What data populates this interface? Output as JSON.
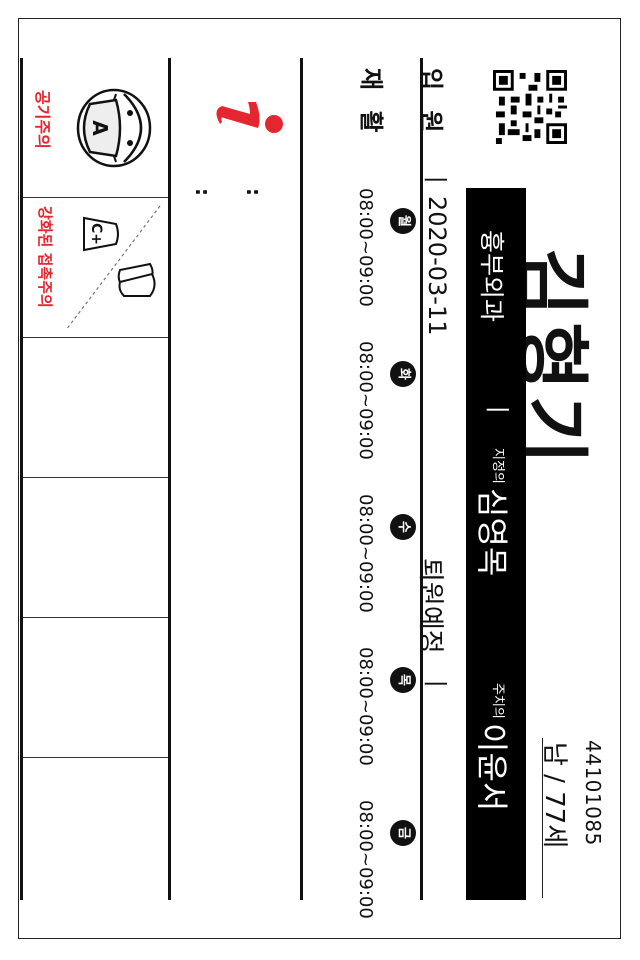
{
  "patient": {
    "id": "44101085",
    "sex_age": "남 / 77세",
    "name": "김형기",
    "department": "흉부외과",
    "separator": "|",
    "designated_label": "지정의",
    "designated_doctor": "심영목",
    "attending_label": "주치의",
    "attending_doctor": "이윤서"
  },
  "admission": {
    "label": "입 원",
    "bar": "|",
    "date": "2020-03-11",
    "discharge_label": "퇴원예정",
    "discharge_bar": "|"
  },
  "rehab": {
    "label": "재 활",
    "days": [
      {
        "day": "월",
        "time": "08:00~09:00"
      },
      {
        "day": "화",
        "time": "08:00~09:00"
      },
      {
        "day": "수",
        "time": "08:00~09:00"
      },
      {
        "day": "목",
        "time": "08:00~09:00"
      },
      {
        "day": "금",
        "time": "08:00~09:00"
      }
    ]
  },
  "notes": {
    "dots1": ":",
    "dots2": ":"
  },
  "precautions": [
    {
      "label": "공기주의",
      "icon": "mask-face-icon",
      "icon_letter": "A"
    },
    {
      "label": "강화된 접촉주의",
      "icon": "gloves-gown-icon",
      "icon_letter": "C+"
    }
  ],
  "colors": {
    "accent_red": "#e3262f",
    "black": "#000000"
  }
}
